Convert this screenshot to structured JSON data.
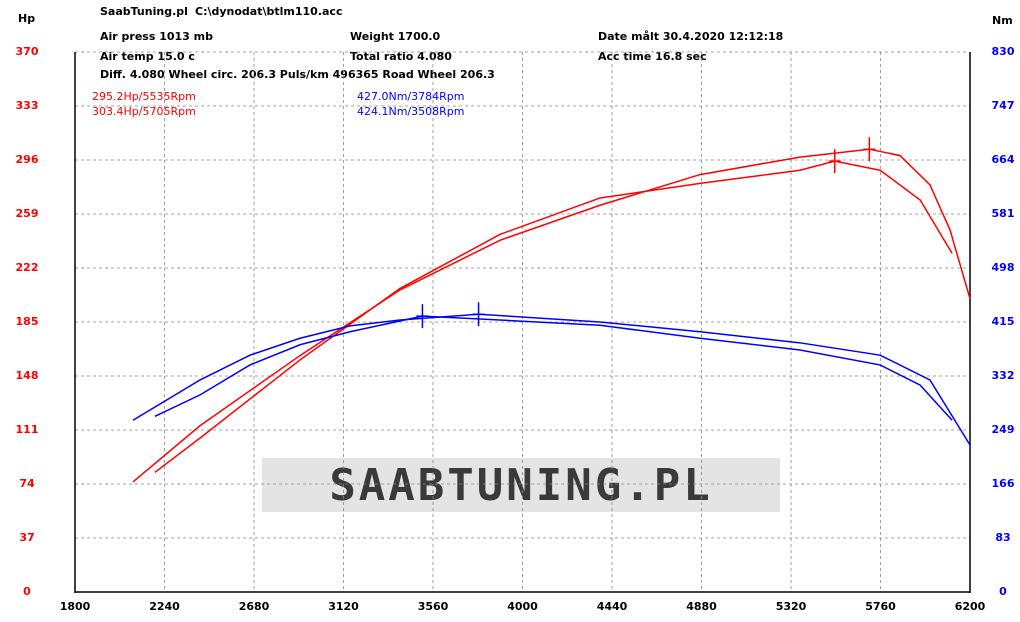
{
  "chart_data": {
    "type": "line",
    "title": "SaabTuning.pl",
    "subtitle": "C:\\dynodat\\btlm110.acc",
    "info": [
      "Air press  1013 mb",
      "Weight   1700.0",
      "Date målt 30.4.2020 12:12:18",
      "Air temp  15.0 c",
      "Total ratio 4.080",
      "Acc time  16.8 sec",
      "Diff.    4.080   Wheel circ. 206.3   Puls/km  496365   Road Wheel 206.3"
    ],
    "ylabel": "Hp",
    "y2label": "Nm",
    "watermark": "SAABTUNING.PL",
    "annotations": [
      {
        "text": "295.2Hp/5535Rpm",
        "color": "#ff0000"
      },
      {
        "text": "303.4Hp/5705Rpm",
        "color": "#ff0000"
      },
      {
        "text": "427.0Nm/3784Rpm",
        "color": "#0000ff"
      },
      {
        "text": "424.1Nm/3508Rpm",
        "color": "#0000ff"
      }
    ],
    "xlim": [
      1800,
      6200
    ],
    "xticks": [
      1800,
      2240,
      2680,
      3120,
      3560,
      4000,
      4440,
      4880,
      5320,
      5760,
      6200
    ],
    "ylim": [
      0,
      370
    ],
    "yticks": [
      0,
      37,
      74,
      111,
      148,
      185,
      222,
      259,
      296,
      333,
      370
    ],
    "y2lim": [
      0,
      830
    ],
    "y2ticks": [
      0,
      83,
      166,
      249,
      332,
      415,
      498,
      581,
      664,
      747,
      830
    ],
    "grid": true,
    "series": [
      {
        "color": "#ff0000",
        "axis": "y",
        "peak": 8,
        "x": [
          2085,
          2415,
          2906,
          3398,
          3889,
          4381,
          4873,
          5364,
          5705,
          5856,
          6003,
          6102,
          6200
        ],
        "values": [
          75.4,
          114,
          162,
          207,
          241,
          265,
          286,
          298,
          303.4,
          299,
          279,
          248,
          201
        ]
      },
      {
        "color": "#ff0000",
        "axis": "y",
        "peak": 8,
        "x": [
          2193,
          2415,
          2906,
          3398,
          3889,
          4381,
          4873,
          5364,
          5535,
          5758,
          5955,
          6112
        ],
        "values": [
          82,
          105.5,
          159,
          208,
          245,
          270,
          280,
          289,
          295.2,
          289,
          268.6,
          232
        ]
      },
      {
        "color": "#0000ff",
        "axis": "y2",
        "peak": 6,
        "x": [
          2085,
          2415,
          2660,
          2906,
          3152,
          3398,
          3784,
          4381,
          4873,
          5364,
          5758,
          6003,
          6200
        ],
        "values": [
          264,
          326,
          364,
          390,
          409,
          418,
          427,
          415,
          400,
          383,
          364,
          326,
          226
        ]
      },
      {
        "color": "#0000ff",
        "axis": "y2",
        "peak": 5,
        "x": [
          2193,
          2415,
          2660,
          2906,
          3152,
          3508,
          3889,
          4381,
          4873,
          5364,
          5758,
          5955,
          6112
        ],
        "values": [
          270,
          303,
          349,
          380,
          400,
          424.1,
          418,
          410,
          390,
          372,
          349,
          318,
          264
        ]
      }
    ]
  }
}
